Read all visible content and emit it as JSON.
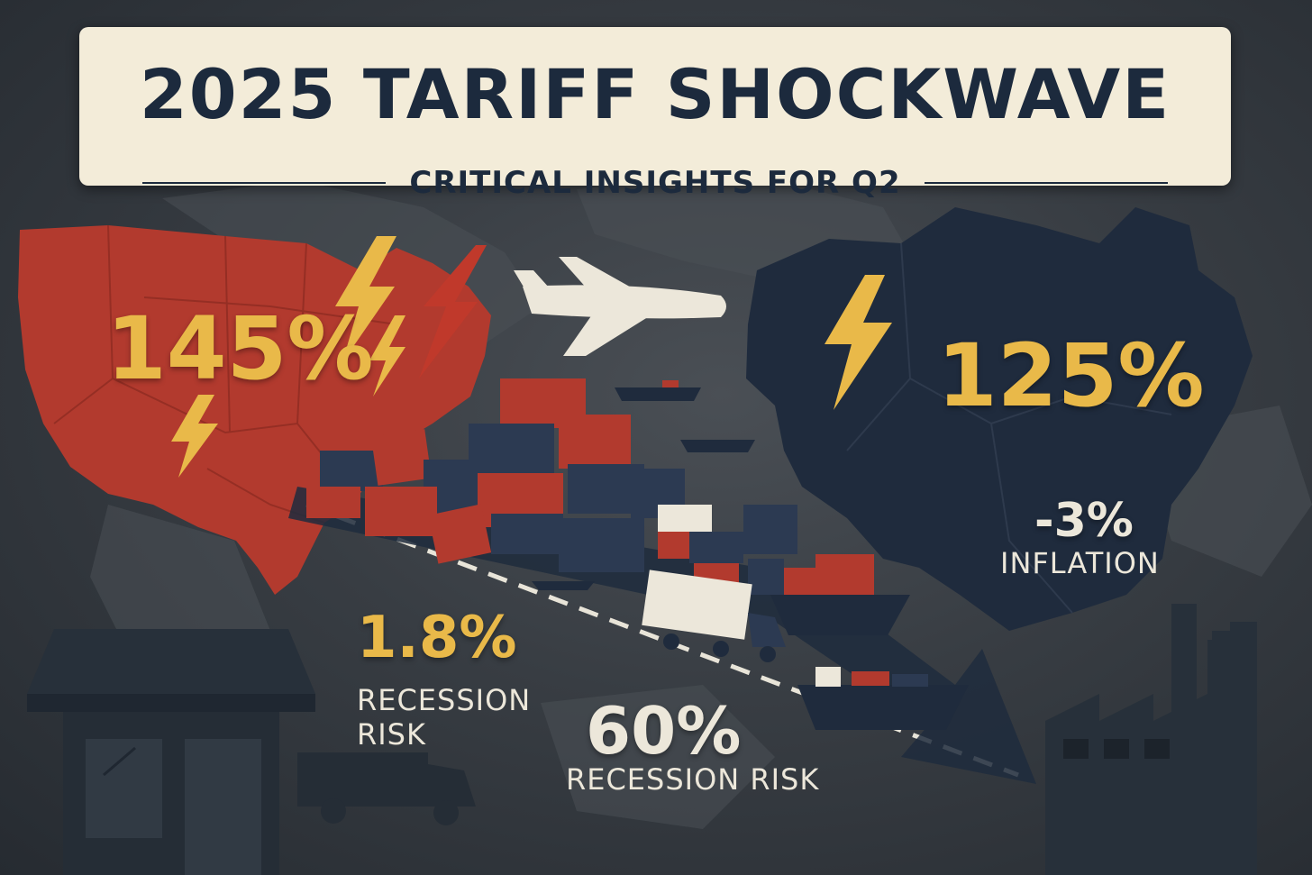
{
  "title": "2025 TARIFF SHOCKWAVE",
  "subtitle": "CRITICAL INSIGHTS FOR Q2",
  "stats": {
    "us_tariff": "145%",
    "china_tariff": "125%",
    "inflation": {
      "value": "-3%",
      "label": "INFLATION"
    },
    "recession_small": {
      "value": "1.8%",
      "label_line1": "RECESSION",
      "label_line2": "RISK"
    },
    "recession_large": {
      "value": "60%",
      "label": "RECESSION RISK"
    }
  },
  "colors": {
    "background": "#383d43",
    "usa_red": "#b23a2e",
    "china_navy": "#1f2b3d",
    "accent_gold": "#e9b949",
    "banner": "#f3ecd9",
    "ink": "#1c2a3d",
    "text_light": "#ece7da"
  },
  "icons": [
    "lightning-icon",
    "airplane-icon",
    "cargo-ship-icon",
    "shipping-container-icon",
    "truck-icon",
    "storefront-icon",
    "factory-icon",
    "trade-arrow-icon"
  ]
}
